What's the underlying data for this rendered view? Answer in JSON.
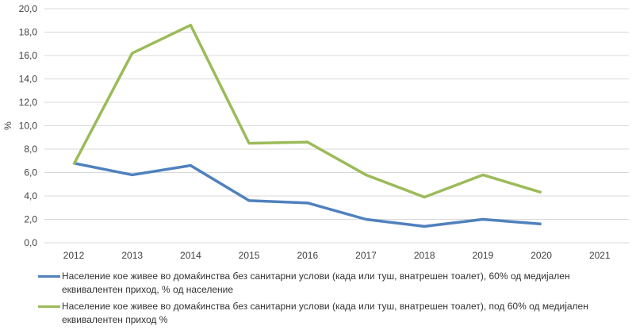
{
  "chart_data": {
    "type": "line",
    "title": "",
    "xlabel": "",
    "ylabel": "%",
    "ylim": [
      0,
      20
    ],
    "ytick_step": 2,
    "ytick_labels": [
      "0,0",
      "2,0",
      "4,0",
      "6,0",
      "8,0",
      "10,0",
      "12,0",
      "14,0",
      "16,0",
      "18,0",
      "20,0"
    ],
    "categories": [
      "2012",
      "2013",
      "2014",
      "2015",
      "2016",
      "2017",
      "2018",
      "2019",
      "2020",
      "2021"
    ],
    "grid": true,
    "legend_position": "bottom",
    "series": [
      {
        "name": "Население кое живее во домаќинства без санитарни услови (када или туш, внатрешен тоалет), 60% од медијален еквивалентен приход, %  од население",
        "color": "#4f81bd",
        "values": [
          6.8,
          5.8,
          6.6,
          3.6,
          3.4,
          2.0,
          1.4,
          2.0,
          1.6,
          null
        ]
      },
      {
        "name": "Население кое живее во домаќинства без санитарни услови (када или туш, внатрешен тоалет), под 60% од медијален еквивалентен приход %",
        "color": "#9bbb59",
        "values": [
          6.7,
          16.2,
          18.6,
          8.5,
          8.6,
          5.8,
          3.9,
          5.8,
          4.3,
          null
        ]
      }
    ]
  }
}
